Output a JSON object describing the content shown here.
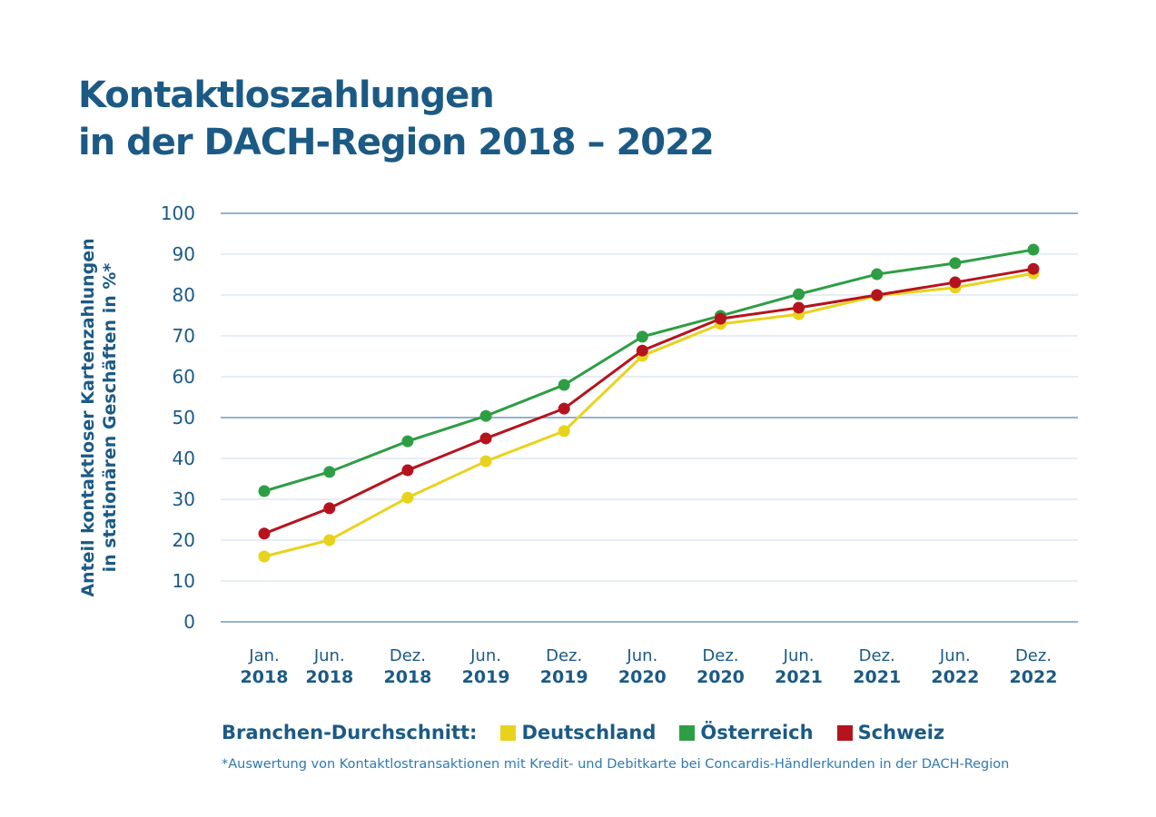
{
  "chart_data": {
    "type": "line",
    "title": "Kontaktloszahlungen in der DACH-Region 2018 – 2022",
    "title_lines": [
      "Kontaktloszahlungen",
      "in der DACH-Region 2018 – 2022"
    ],
    "ylabel_lines": [
      "Anteil kontaktloser Kartenzahlungen",
      "in stationären Geschäften in %*"
    ],
    "xlabel": "",
    "ylim": [
      0,
      100
    ],
    "yticks": [
      0,
      10,
      20,
      30,
      40,
      50,
      60,
      70,
      80,
      90,
      100
    ],
    "grid": true,
    "categories": [
      {
        "month": "Jan.",
        "year": "2018"
      },
      {
        "month": "Jun.",
        "year": "2018"
      },
      {
        "month": "Dez.",
        "year": "2018"
      },
      {
        "month": "Jun.",
        "year": "2019"
      },
      {
        "month": "Dez.",
        "year": "2019"
      },
      {
        "month": "Jun.",
        "year": "2020"
      },
      {
        "month": "Dez.",
        "year": "2020"
      },
      {
        "month": "Jun.",
        "year": "2021"
      },
      {
        "month": "Dez.",
        "year": "2021"
      },
      {
        "month": "Jun.",
        "year": "2022"
      },
      {
        "month": "Dez.",
        "year": "2022"
      }
    ],
    "legend_title": "Branchen-Durchschnitt:",
    "legend_position": "bottom",
    "series": [
      {
        "name": "Deutschland",
        "color": "#e8d31c",
        "values": [
          16,
          20,
          30.4,
          39.3,
          46.7,
          65.1,
          72.9,
          75.3,
          79.8,
          81.8,
          85.3
        ]
      },
      {
        "name": "Österreich",
        "color": "#2e9e44",
        "values": [
          32,
          36.7,
          44.2,
          50.4,
          58,
          69.8,
          74.9,
          80.2,
          85.1,
          87.8,
          91.1
        ]
      },
      {
        "name": "Schweiz",
        "color": "#b5141e",
        "values": [
          21.6,
          27.8,
          37.1,
          44.9,
          52.2,
          66.4,
          74.2,
          76.9,
          80,
          83.1,
          86.4
        ]
      }
    ],
    "footnote": "*Auswertung von Kontaktlostransaktionen mit Kredit- und Debitkarte bei Concardis-Händlerkunden in der DACH-Region"
  }
}
